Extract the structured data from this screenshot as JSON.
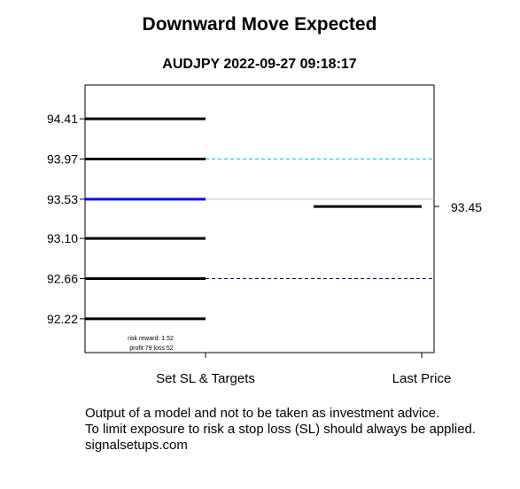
{
  "chart_data": {
    "type": "line",
    "title": "Downward Move Expected",
    "subtitle": "AUDJPY 2022-09-27 09:18:17",
    "categories": [
      "Set SL & Targets",
      "Last Price"
    ],
    "ylim": [
      91.85,
      94.78
    ],
    "levels": [
      {
        "label": "94.41",
        "value": 94.41,
        "color": "#000000"
      },
      {
        "label": "93.97",
        "value": 93.97,
        "color": "#000000"
      },
      {
        "label": "93.53",
        "value": 93.53,
        "color": "#0000ff"
      },
      {
        "label": "93.10",
        "value": 93.1,
        "color": "#000000"
      },
      {
        "label": "92.66",
        "value": 92.66,
        "color": "#000000"
      },
      {
        "label": "92.22",
        "value": 92.22,
        "color": "#000000"
      }
    ],
    "reference_lines": [
      {
        "value": 93.97,
        "color": "#00bfff",
        "style": "dashed"
      },
      {
        "value": 93.53,
        "color": "#bdbdbd",
        "style": "solid"
      },
      {
        "value": 92.66,
        "color": "#000080",
        "style": "dashed"
      }
    ],
    "last_price": {
      "value": 93.45,
      "label": "93.45"
    },
    "annotation": [
      "risk reward: 1.52",
      "profit 79  loss 52"
    ]
  },
  "footer": {
    "line1": "Output of a model and not to be taken as investment advice.",
    "line2": "To limit exposure to risk a stop loss (SL) should always be applied.",
    "line3": "signalsetups.com"
  }
}
